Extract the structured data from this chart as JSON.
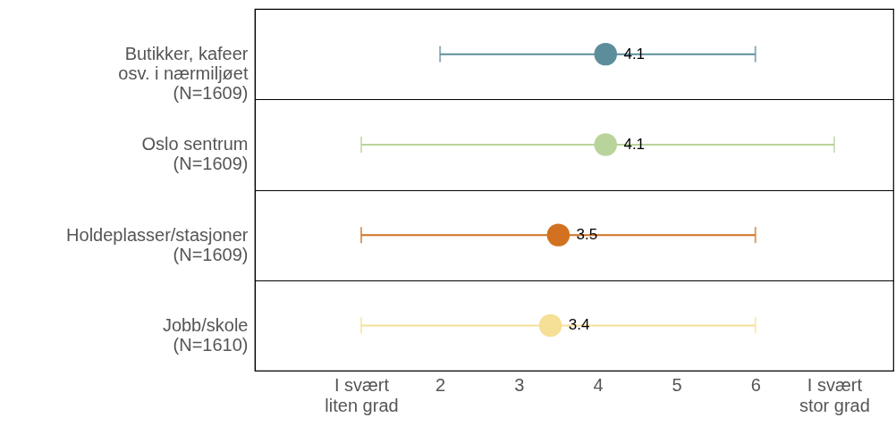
{
  "chart_data": {
    "type": "scatter",
    "orientation": "horizontal",
    "categories": [
      "Butikker, kafeer\nosv. i nærmiljøet\n(N=1609)",
      "Oslo sentrum\n(N=1609)",
      "Holdeplasser/stasjoner\n(N=1609)",
      "Jobb/skole\n(N=1610)"
    ],
    "values": [
      4.1,
      4.1,
      3.5,
      3.4
    ],
    "errors": [
      [
        2,
        6
      ],
      [
        1,
        7
      ],
      [
        1,
        6
      ],
      [
        1,
        6
      ]
    ],
    "colors": [
      "#5b8e9a",
      "#b8d49a",
      "#d2711f",
      "#f6df96"
    ],
    "data_labels": true,
    "xlim": [
      -0.35,
      7.75
    ],
    "xticks": [
      {
        "value": 1,
        "label": "I svært\nliten grad"
      },
      2,
      3,
      4,
      5,
      6,
      {
        "value": 7,
        "label": "I svært\nstor grad"
      }
    ]
  }
}
